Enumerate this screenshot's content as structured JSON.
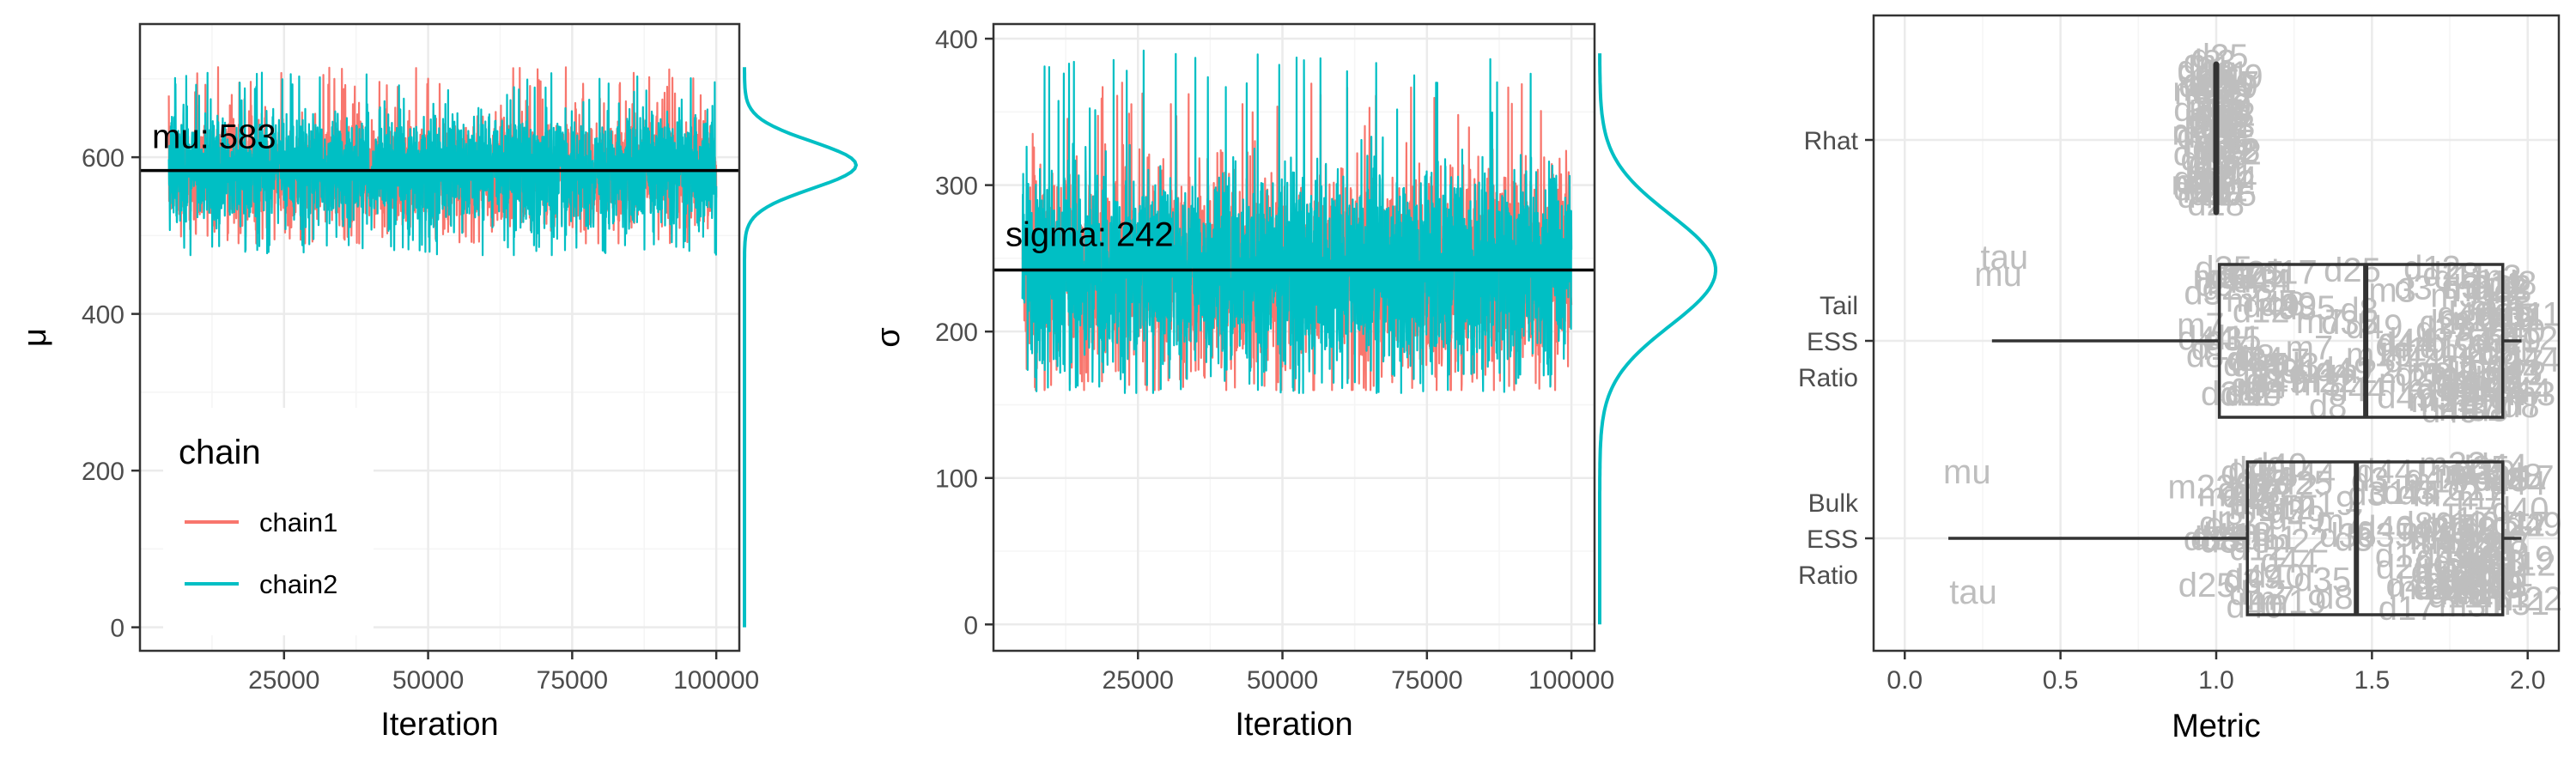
{
  "chart_data": [
    {
      "type": "line",
      "panel": "trace-mu",
      "xlabel": "Iteration",
      "ylabel": "μ",
      "xlim": [
        0,
        104000
      ],
      "ylim": [
        -30,
        770
      ],
      "x_ticks": [
        25000,
        50000,
        75000,
        100000
      ],
      "y_ticks": [
        0,
        200,
        400,
        600
      ],
      "iteration_range": [
        5000,
        100000
      ],
      "grid": true,
      "legend": {
        "title": "chain",
        "placement": "bottom-left"
      },
      "series": [
        {
          "name": "chain1",
          "color": "#F8766D",
          "center": 583,
          "band": [
            510,
            655
          ],
          "extremes": [
            490,
            715
          ]
        },
        {
          "name": "chain2",
          "color": "#00BFC4",
          "center": 583,
          "band": [
            510,
            655
          ],
          "extremes": [
            475,
            710
          ]
        }
      ],
      "hline": {
        "value": 583,
        "label": "mu: 583"
      },
      "density": {
        "peak": 590,
        "range": [
          0,
          715
        ],
        "color": "#00BFC4"
      }
    },
    {
      "type": "line",
      "panel": "trace-sigma",
      "xlabel": "Iteration",
      "ylabel": "σ",
      "xlim": [
        0,
        104000
      ],
      "ylim": [
        -18,
        410
      ],
      "x_ticks": [
        25000,
        50000,
        75000,
        100000
      ],
      "y_ticks": [
        0,
        100,
        200,
        300,
        400
      ],
      "iteration_range": [
        5000,
        100000
      ],
      "grid": true,
      "series": [
        {
          "name": "chain1",
          "color": "#F8766D",
          "center": 242,
          "band": [
            180,
            320
          ],
          "extremes": [
            160,
            370
          ]
        },
        {
          "name": "chain2",
          "color": "#00BFC4",
          "center": 242,
          "band": [
            180,
            320
          ],
          "extremes": [
            158,
            392
          ]
        }
      ],
      "hline": {
        "value": 242,
        "label": "sigma: 242"
      },
      "density": {
        "peak": 242,
        "range": [
          0,
          390
        ],
        "color": "#00BFC4"
      }
    },
    {
      "type": "box",
      "panel": "diagnostics",
      "xlabel": "Metric",
      "ylabel": "",
      "xlim": [
        -0.1,
        2.1
      ],
      "x_ticks": [
        0.0,
        0.5,
        1.0,
        1.5,
        2.0
      ],
      "x_tick_labels": [
        "0.0",
        "0.5",
        "1.0",
        "1.5",
        "2.0"
      ],
      "categories": [
        "Rhat",
        "Tail\nESS\nRatio",
        "Bulk\nESS\nRatio"
      ],
      "boxes": [
        {
          "category": "Rhat",
          "whisker_low": 1.0,
          "q1": 1.0,
          "median": 1.0,
          "q3": 1.0,
          "whisker_high": 1.0,
          "label_spread": [
            0.95,
            1.05
          ]
        },
        {
          "category": "Tail\nESS\nRatio",
          "whisker_low": 0.28,
          "q1": 1.01,
          "median": 1.48,
          "q3": 1.92,
          "whisker_high": 1.98
        },
        {
          "category": "Bulk\nESS\nRatio",
          "whisker_low": 0.14,
          "q1": 1.1,
          "median": 1.45,
          "q3": 1.92,
          "whisker_high": 1.98
        }
      ],
      "outlier_labels": [
        {
          "category": "Tail\nESS\nRatio",
          "label": "tau",
          "value": 0.32
        },
        {
          "category": "Tail\nESS\nRatio",
          "label": "mu",
          "value": 0.3
        },
        {
          "category": "Bulk\nESS\nRatio",
          "label": "mu",
          "value": 0.2
        },
        {
          "category": "Bulk\nESS\nRatio",
          "label": "tau",
          "value": 0.22
        }
      ],
      "point_label_color": "#bebebe"
    }
  ]
}
